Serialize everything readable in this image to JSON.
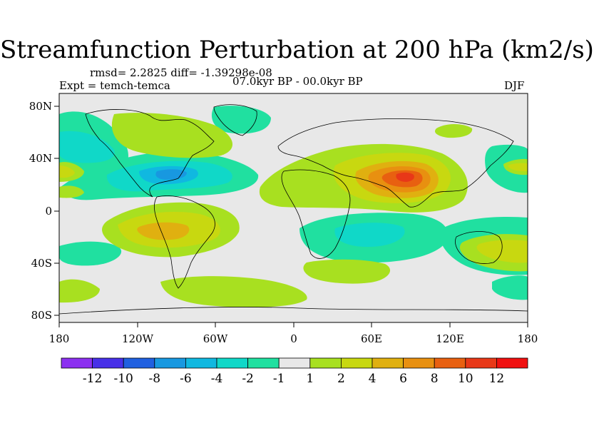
{
  "title": "Streamfunction Perturbation at 200 hPa (km2/s)",
  "stats_line": "rmsd= 2.2825 diff= -1.39298e-08",
  "experiment": "Expt = temch-temca",
  "period": "07.0kyr BP - 00.0kyr BP",
  "season": "DJF",
  "lat_ticks": [
    "80N",
    "40N",
    "0",
    "40S",
    "80S"
  ],
  "lon_ticks": [
    "180",
    "120W",
    "60W",
    "0",
    "60E",
    "120E",
    "180"
  ],
  "colorbar": {
    "labels": [
      "-12",
      "-10",
      "-8",
      "-6",
      "-4",
      "-2",
      "-1",
      "1",
      "2",
      "4",
      "6",
      "8",
      "10",
      "12"
    ],
    "colors": [
      "#8c30f0",
      "#4830e8",
      "#2060e0",
      "#1898e0",
      "#10b8e0",
      "#10d8c8",
      "#20e0a0",
      "#e8e8e8",
      "#a8e020",
      "#c8d810",
      "#e0b010",
      "#e89010",
      "#e86010",
      "#e83818",
      "#f01010"
    ]
  },
  "field_colors": {
    "neutral": "#e8e8e8",
    "pos1": "#a8e020",
    "pos2": "#c8d810",
    "pos3": "#e0b010",
    "pos4": "#e89010",
    "pos5": "#e86010",
    "pos6": "#e83818",
    "neg1": "#20e0a0",
    "neg2": "#10d8c8",
    "neg3": "#10b8e0",
    "neg4": "#1898e0"
  }
}
